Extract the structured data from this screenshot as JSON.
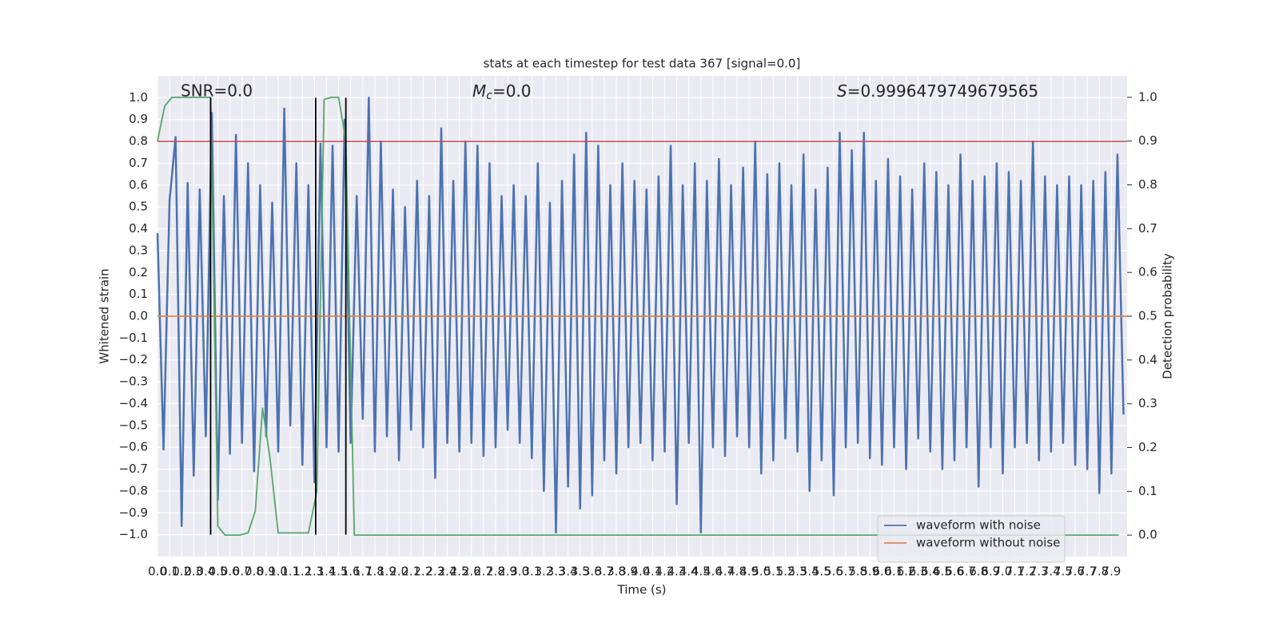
{
  "chart_data": {
    "type": "line",
    "title": "stats at each timestep for test data 367 [signal=0.0]",
    "xlabel": "Time (s)",
    "ylabel": "Whitened strain",
    "y2label": "Detection probability",
    "annotations": [
      {
        "text": "SNR=0.0"
      },
      {
        "symbol": "M",
        "subscript": "c",
        "text": "=0.0"
      },
      {
        "symbol": "S",
        "text": "=0.9996479749679565"
      }
    ],
    "xlim": [
      0,
      8.03
    ],
    "ylim": [
      -1.1,
      1.1
    ],
    "y2lim": [
      -0.049,
      1.049
    ],
    "grid": true,
    "legend": "lower right",
    "xticks": [
      {
        "value": 0,
        "label": "0.0"
      },
      0.1,
      0.2,
      0.3,
      0.4,
      0.5,
      0.6,
      0.7,
      0.8,
      0.9,
      {
        "value": 1,
        "label": "1.0"
      },
      1.1,
      1.2,
      1.3,
      1.4,
      1.5,
      1.6,
      1.7,
      1.8,
      1.9,
      {
        "value": 2,
        "label": "2.0"
      },
      2.1,
      2.2,
      2.3,
      2.4,
      2.5,
      2.6,
      2.7,
      2.8,
      2.9,
      {
        "value": 3,
        "label": "3.0"
      },
      3.1,
      3.2,
      3.3,
      3.4,
      3.5,
      3.6,
      3.7,
      3.8,
      3.9,
      {
        "value": 4,
        "label": "4.0"
      },
      4.1,
      4.2,
      4.3,
      4.4,
      4.5,
      4.6,
      4.7,
      4.8,
      4.9,
      {
        "value": 5,
        "label": "5.0"
      },
      5.1,
      5.2,
      5.3,
      5.4,
      5.5,
      5.6,
      5.7,
      5.8,
      5.9,
      {
        "value": 6,
        "label": "6.0"
      },
      6.1,
      6.2,
      6.3,
      6.4,
      6.5,
      6.6,
      6.7,
      6.8,
      6.9,
      {
        "value": 7,
        "label": "7.0"
      },
      7.1,
      7.2,
      7.3,
      7.4,
      7.5,
      7.6,
      7.7,
      7.8,
      7.9
    ],
    "yticks": [
      {
        "value": -1,
        "label": "−1.0"
      },
      {
        "value": -0.9,
        "label": "−0.9"
      },
      {
        "value": -0.8,
        "label": "−0.8"
      },
      {
        "value": -0.7,
        "label": "−0.7"
      },
      {
        "value": -0.6,
        "label": "−0.6"
      },
      {
        "value": -0.5,
        "label": "−0.5"
      },
      {
        "value": -0.4,
        "label": "−0.4"
      },
      {
        "value": -0.3,
        "label": "−0.3"
      },
      {
        "value": -0.2,
        "label": "−0.2"
      },
      {
        "value": -0.1,
        "label": "−0.1"
      },
      {
        "value": 0,
        "label": "0.0"
      },
      0.1,
      0.2,
      0.3,
      0.4,
      0.5,
      0.6,
      0.7,
      0.8,
      0.9,
      {
        "value": 1,
        "label": "1.0"
      }
    ],
    "y2ticks": [
      {
        "value": 0,
        "label": "0.0"
      },
      0.1,
      0.2,
      0.3,
      0.4,
      0.5,
      0.6,
      0.7,
      0.8,
      0.9,
      {
        "value": 1,
        "label": "1.0"
      }
    ],
    "hline": {
      "value": 0.8,
      "color": "#c44e52"
    },
    "vlines": {
      "x": [
        0.44,
        1.31,
        1.56
      ],
      "color": "#000000"
    },
    "series": [
      {
        "name": "waveform with noise",
        "color": "#4c72b0",
        "x": [
          0,
          0.05,
          0.1,
          0.15,
          0.2,
          0.25,
          0.3,
          0.35,
          0.4,
          0.45,
          0.5,
          0.55,
          0.6,
          0.65,
          0.7,
          0.75,
          0.8,
          0.85,
          0.9,
          0.95,
          1,
          1.05,
          1.1,
          1.15,
          1.2,
          1.25,
          1.3,
          1.35,
          1.4,
          1.45,
          1.5,
          1.55,
          1.6,
          1.65,
          1.7,
          1.75,
          1.8,
          1.85,
          1.9,
          1.95,
          2,
          2.05,
          2.1,
          2.15,
          2.2,
          2.25,
          2.3,
          2.35,
          2.4,
          2.45,
          2.5,
          2.55,
          2.6,
          2.65,
          2.7,
          2.75,
          2.8,
          2.85,
          2.9,
          2.95,
          3,
          3.05,
          3.1,
          3.15,
          3.2,
          3.25,
          3.3,
          3.35,
          3.4,
          3.45,
          3.5,
          3.55,
          3.6,
          3.65,
          3.7,
          3.75,
          3.8,
          3.85,
          3.9,
          3.95,
          4,
          4.05,
          4.1,
          4.15,
          4.2,
          4.25,
          4.3,
          4.35,
          4.4,
          4.45,
          4.5,
          4.55,
          4.6,
          4.65,
          4.7,
          4.75,
          4.8,
          4.85,
          4.9,
          4.95,
          5,
          5.05,
          5.1,
          5.15,
          5.2,
          5.25,
          5.3,
          5.35,
          5.4,
          5.45,
          5.5,
          5.55,
          5.6,
          5.65,
          5.7,
          5.75,
          5.8,
          5.85,
          5.9,
          5.95,
          6,
          6.05,
          6.1,
          6.15,
          6.2,
          6.25,
          6.3,
          6.35,
          6.4,
          6.45,
          6.5,
          6.55,
          6.6,
          6.65,
          6.7,
          6.75,
          6.8,
          6.85,
          6.9,
          6.95,
          7,
          7.05,
          7.1,
          7.15,
          7.2,
          7.25,
          7.3,
          7.35,
          7.4,
          7.45,
          7.5,
          7.55,
          7.6,
          7.65,
          7.7,
          7.75,
          7.8,
          7.85,
          7.9,
          7.95,
          8
        ],
        "values": [
          0.38,
          -0.61,
          0.53,
          0.82,
          -0.96,
          0.61,
          -0.73,
          0.58,
          -0.55,
          0.93,
          -0.84,
          0.55,
          -0.63,
          0.83,
          -0.58,
          0.7,
          -0.71,
          0.6,
          -0.55,
          0.52,
          -0.62,
          0.95,
          -0.5,
          0.7,
          -0.68,
          0.6,
          -0.76,
          0.79,
          -0.6,
          0.78,
          -0.62,
          0.9,
          -0.58,
          0.55,
          -0.47,
          1.0,
          -0.62,
          0.8,
          -0.55,
          0.58,
          -0.66,
          0.5,
          -0.52,
          0.62,
          -0.6,
          0.55,
          -0.74,
          0.86,
          -0.58,
          0.62,
          -0.62,
          0.8,
          -0.58,
          0.78,
          -0.64,
          0.7,
          -0.6,
          0.55,
          -0.52,
          0.6,
          -0.58,
          0.55,
          -0.65,
          0.7,
          -0.8,
          0.52,
          -0.99,
          0.62,
          -0.78,
          0.74,
          -0.88,
          0.84,
          -0.82,
          0.78,
          -0.66,
          0.6,
          -0.72,
          0.7,
          -0.6,
          0.62,
          -0.58,
          0.58,
          -0.66,
          0.64,
          -0.62,
          0.78,
          -0.86,
          0.6,
          -0.58,
          0.7,
          -0.99,
          0.62,
          -0.6,
          0.72,
          -0.64,
          0.6,
          -0.55,
          0.68,
          -0.6,
          0.8,
          -0.72,
          0.65,
          -0.66,
          0.7,
          -0.56,
          0.6,
          -0.62,
          0.74,
          -0.8,
          0.58,
          -0.66,
          0.68,
          -0.82,
          0.84,
          -0.6,
          0.76,
          -0.58,
          0.84,
          -0.65,
          0.62,
          -0.68,
          0.72,
          -0.6,
          0.64,
          -0.7,
          0.58,
          -0.56,
          0.7,
          -0.62,
          0.66,
          -0.7,
          0.6,
          -0.66,
          0.74,
          -0.6,
          0.62,
          -0.78,
          0.64,
          -0.6,
          0.7,
          -0.72,
          0.66,
          -0.6,
          0.62,
          -0.58,
          0.8,
          -0.66,
          0.64,
          -0.62,
          0.6,
          -0.58,
          0.64,
          -0.68,
          0.6,
          -0.7,
          0.62,
          -0.81,
          0.66,
          -0.72,
          0.74,
          -0.45
        ]
      },
      {
        "name": "waveform without noise",
        "color": "#dd8452",
        "x": [
          0,
          8.03
        ],
        "values": [
          0,
          0
        ]
      },
      {
        "color": "#55a868",
        "axis": "y2",
        "x": [
          0,
          0.06,
          0.12,
          0.44,
          0.5,
          0.56,
          0.68,
          0.75,
          0.81,
          0.87,
          0.93,
          1.0,
          1.25,
          1.32,
          1.38,
          1.44,
          1.5,
          1.56,
          1.63,
          7.96
        ],
        "values": [
          0.9,
          0.98,
          1.0,
          1.0,
          0.02,
          0,
          0,
          0.005,
          0.055,
          0.29,
          0.18,
          0.005,
          0.005,
          0.1,
          0.995,
          1.0,
          1.0,
          0.9,
          0,
          0
        ]
      }
    ]
  }
}
